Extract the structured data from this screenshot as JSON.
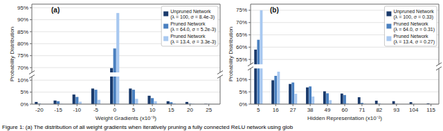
{
  "chart_data": [
    {
      "type": "bar",
      "title": "(a)",
      "xlabel": "Weight Gradients (x10⁻³)",
      "ylabel": "Probability Distribution",
      "x": [
        -20,
        -15,
        -10,
        -5,
        0,
        5,
        10,
        15,
        20,
        25
      ],
      "xlim": [
        -22,
        28
      ],
      "xticks": [
        -20,
        -15,
        -10,
        -5,
        0,
        5,
        10,
        15,
        20,
        25
      ],
      "ylim": [
        [
          0.0,
          0.115
        ],
        [
          0.68,
          0.965
        ]
      ],
      "yticks": [
        [
          {
            "value": 0.0,
            "label": "0%"
          },
          {
            "value": 0.05,
            "label": "5%"
          },
          {
            "value": 0.1,
            "label": "10%"
          }
        ],
        [
          {
            "value": 0.7,
            "label": "70%"
          },
          {
            "value": 0.75,
            "label": "75%"
          },
          {
            "value": 0.8,
            "label": "80%"
          },
          {
            "value": 0.85,
            "label": "85%"
          },
          {
            "value": 0.9,
            "label": "90%"
          },
          {
            "value": 0.95,
            "label": "95%"
          }
        ]
      ],
      "grid": true,
      "legend": "upper right",
      "series": [
        {
          "name": "Unpruned Network\n(λ = 100, σ = 8.4e-3)",
          "color": "#1a3a6b",
          "values": [
            0.009,
            0.015,
            0.04,
            0.065,
            0.698,
            0.065,
            0.035,
            0.012,
            0.009,
            0.001
          ]
        },
        {
          "name": "Pruned Network\n(λ = 64.0, σ = 5.2e-3)",
          "color": "#4a80c0",
          "values": [
            0.002,
            0.012,
            0.03,
            0.06,
            0.78,
            0.06,
            0.025,
            0.008,
            0.002,
            0.0005
          ]
        },
        {
          "name": "Pruned Network\n(λ = 13.4, σ = 3.3e-3)",
          "color": "#a8c8f0",
          "values": [
            0.0,
            0.001,
            0.01,
            0.018,
            0.928,
            0.022,
            0.012,
            0.003,
            0.001,
            0.0001
          ]
        }
      ]
    },
    {
      "type": "bar",
      "title": "(b)",
      "xlabel": "Hidden Representation (x10⁻²)",
      "ylabel": "Probability Distribution",
      "x": [
        5,
        16,
        27,
        38,
        49,
        60,
        71,
        82,
        93,
        104,
        115
      ],
      "xlim": [
        0,
        120
      ],
      "xticks": [
        5,
        16,
        27,
        38,
        49,
        60,
        71,
        82,
        93,
        104,
        115
      ],
      "ylim": [
        [
          0.0,
          0.145
        ],
        [
          0.53,
          0.775
        ]
      ],
      "yticks": [
        [
          {
            "value": 0.0,
            "label": "0%"
          },
          {
            "value": 0.05,
            "label": "5%"
          },
          {
            "value": 0.1,
            "label": "10%"
          }
        ],
        [
          {
            "value": 0.55,
            "label": "55%"
          },
          {
            "value": 0.6,
            "label": "60%"
          },
          {
            "value": 0.65,
            "label": "65%"
          },
          {
            "value": 0.7,
            "label": "70%"
          },
          {
            "value": 0.75,
            "label": "75%"
          }
        ]
      ],
      "grid": true,
      "legend": "upper right",
      "series": [
        {
          "name": "Unpruned Network\n(λ = 100, σ = 0.33)",
          "color": "#1a3a6b",
          "values": [
            0.59,
            0.097,
            0.082,
            0.068,
            0.052,
            0.043,
            0.028,
            0.014,
            0.012,
            0.008,
            0.003
          ]
        },
        {
          "name": "Pruned Network\n(λ = 64.0, σ = 0.31)",
          "color": "#4a80c0",
          "values": [
            0.63,
            0.115,
            0.088,
            0.072,
            0.044,
            0.037,
            0.005,
            0.002,
            0.001,
            0.0005,
            0.0001
          ]
        },
        {
          "name": "Pruned Network\n(λ = 13.4, σ = 0.27)",
          "color": "#a8c8f0",
          "values": [
            0.75,
            0.132,
            0.042,
            0.031,
            0.016,
            0.003,
            0.001,
            0.0003,
            0.0001,
            0.0001,
            0.0
          ]
        }
      ]
    }
  ],
  "caption": "Figure 1: (a) The distribution of all weight gradients when iteratively pruning a fully connected ReLU network using glob"
}
